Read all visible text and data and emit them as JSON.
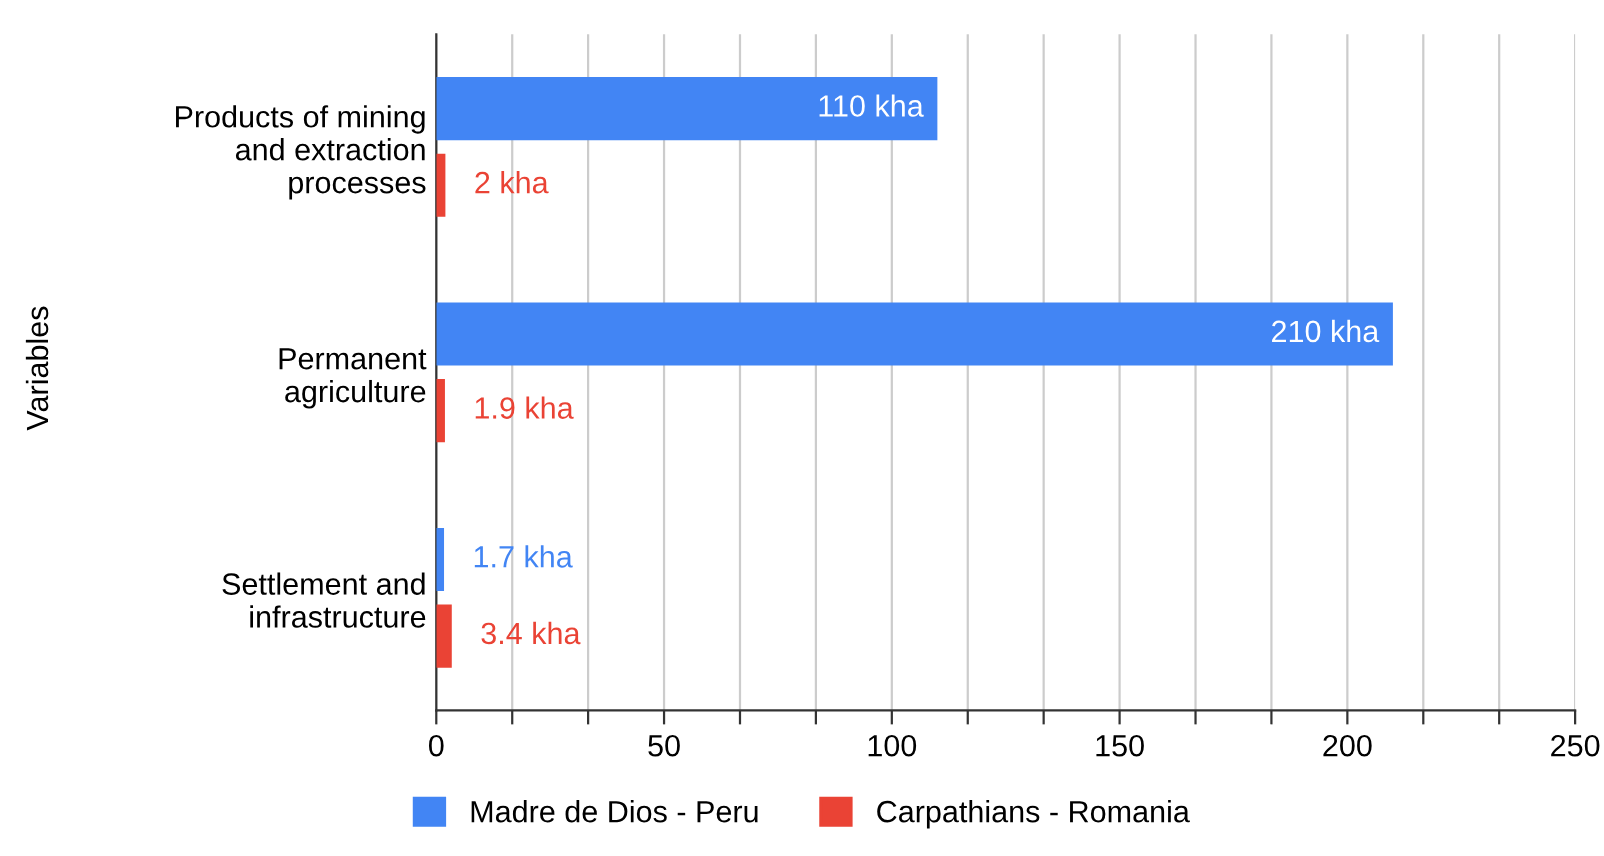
{
  "chart_data": {
    "type": "bar",
    "orientation": "horizontal",
    "ylabel": "Variables",
    "categories": [
      "Products of mining\nand extraction\nprocesses",
      "Permanent\nagriculture",
      "Settlement and\ninfrastructure"
    ],
    "series": [
      {
        "name": "Madre de Dios - Peru",
        "color": "#4285f4",
        "values": [
          110,
          210,
          1.7
        ],
        "value_labels": [
          "110 kha",
          "210 kha",
          "1.7 kha"
        ]
      },
      {
        "name": "Carpathians - Romania",
        "color": "#ea4335",
        "values": [
          2,
          1.9,
          3.4
        ],
        "value_labels": [
          "2 kha",
          "1.9 kha",
          "3.4 kha"
        ]
      }
    ],
    "xlim": [
      0,
      250
    ],
    "xticks": [
      0,
      {
        "value": 16.67,
        "label": null
      },
      {
        "value": 33.33,
        "label": null
      },
      50,
      {
        "value": 66.67,
        "label": null
      },
      {
        "value": 83.33,
        "label": null
      },
      100,
      {
        "value": 116.67,
        "label": null
      },
      {
        "value": 133.33,
        "label": null
      },
      150,
      {
        "value": 166.67,
        "label": null
      },
      {
        "value": 183.33,
        "label": null
      },
      200,
      {
        "value": 216.67,
        "label": null
      },
      {
        "value": 233.33,
        "label": null
      },
      250
    ],
    "grid": "x",
    "legend": "bottom"
  }
}
